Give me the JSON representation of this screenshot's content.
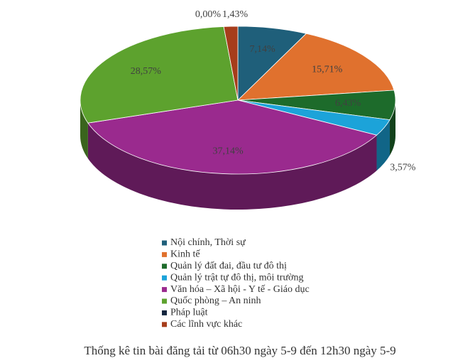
{
  "chart_data": {
    "type": "pie",
    "title": "Thống kê tin bài đăng tải từ 06h30 ngày 5-9 đến 12h30 ngày 5-9",
    "categories": [
      "Nội chính, Thời sự",
      "Kinh tế",
      "Quản lý đất đai, đầu tư đô thị",
      "Quản lý trật tự đô thị, môi trường",
      "Văn hóa – Xã hội - Y tế - Giáo dục",
      "Quốc phòng – An ninh",
      "Pháp luật",
      "Các lĩnh vực khác"
    ],
    "values": [
      7.14,
      15.71,
      6.43,
      3.57,
      37.14,
      28.57,
      0.0,
      1.43
    ],
    "value_labels": [
      "7,14%",
      "15,71%",
      "6,43%",
      "3,57%",
      "37,14%",
      "28,57%",
      "0,00%",
      "1,43%"
    ],
    "colors": [
      "#1f5f7a",
      "#e0712e",
      "#1d6b2b",
      "#1ca3d9",
      "#9a2a8e",
      "#5da22e",
      "#13253d",
      "#a63d1b"
    ]
  }
}
